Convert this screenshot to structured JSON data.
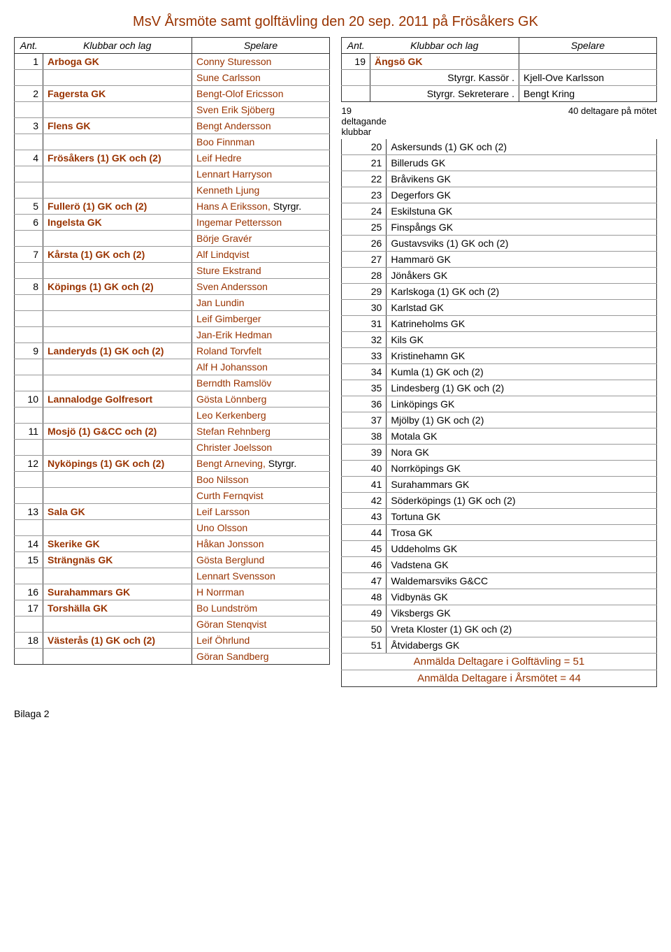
{
  "title": "MsV  Årsmöte samt golftävling den 20 sep. 2011 på Frösåkers GK",
  "colors": {
    "accent": "#993300",
    "grid": "#999999",
    "border": "#333333",
    "background": "#ffffff"
  },
  "left": {
    "headers": {
      "ant": "Ant.",
      "klubbar": "Klubbar och lag",
      "spelare": "Spelare"
    },
    "rows": [
      {
        "ant": "1",
        "klub": "Arboga GK",
        "player": "Conny Sturesson"
      },
      {
        "ant": "",
        "klub": "",
        "player": "Sune Carlsson"
      },
      {
        "ant": "2",
        "klub": "Fagersta GK",
        "player": "Bengt-Olof Ericsson"
      },
      {
        "ant": "",
        "klub": "",
        "player": "Sven Erik Sjöberg"
      },
      {
        "ant": "3",
        "klub": "Flens GK",
        "player": "Bengt Andersson"
      },
      {
        "ant": "",
        "klub": "",
        "player": "Boo Finnman"
      },
      {
        "ant": "4",
        "klub": "Frösåkers (1) GK och (2)",
        "player": "Leif Hedre"
      },
      {
        "ant": "",
        "klub": "",
        "player": "Lennart Harryson"
      },
      {
        "ant": "",
        "klub": "",
        "player": "Kenneth Ljung"
      },
      {
        "ant": "5",
        "klub": "Fullerö (1) GK och (2)",
        "player": "Hans A Eriksson,",
        "extra": " Styrgr."
      },
      {
        "ant": "6",
        "klub": "Ingelsta GK",
        "player": "Ingemar Pettersson"
      },
      {
        "ant": "",
        "klub": "",
        "player": "Börje Gravér"
      },
      {
        "ant": "7",
        "klub": "Kårsta (1) GK och (2)",
        "player": "Alf Lindqvist"
      },
      {
        "ant": "",
        "klub": "",
        "player": "Sture Ekstrand"
      },
      {
        "ant": "8",
        "klub": "Köpings (1) GK och (2)",
        "player": "Sven Andersson"
      },
      {
        "ant": "",
        "klub": "",
        "player": "Jan Lundin"
      },
      {
        "ant": "",
        "klub": "",
        "player": "Leif Gimberger"
      },
      {
        "ant": "",
        "klub": "",
        "player": "Jan-Erik Hedman"
      },
      {
        "ant": "9",
        "klub": "Landeryds (1) GK och (2)",
        "player": "Roland Torvfelt"
      },
      {
        "ant": "",
        "klub": "",
        "player": "Alf H Johansson"
      },
      {
        "ant": "",
        "klub": "",
        "player": "Berndth Ramslöv"
      },
      {
        "ant": "10",
        "klub": "Lannalodge Golfresort",
        "player": "Gösta Lönnberg"
      },
      {
        "ant": "",
        "klub": "",
        "player": "Leo Kerkenberg"
      },
      {
        "ant": "11",
        "klub": "Mosjö (1) G&CC och (2)",
        "player": "Stefan Rehnberg"
      },
      {
        "ant": "",
        "klub": "",
        "player": "Christer Joelsson"
      },
      {
        "ant": "12",
        "klub": "Nyköpings (1) GK och (2)",
        "player": "Bengt Arneving,",
        "extra": " Styrgr."
      },
      {
        "ant": "",
        "klub": "",
        "player": "Boo Nilsson"
      },
      {
        "ant": "",
        "klub": "",
        "player": "Curth Fernqvist"
      },
      {
        "ant": "13",
        "klub": "Sala GK",
        "player": "Leif Larsson"
      },
      {
        "ant": "",
        "klub": "",
        "player": "Uno Olsson"
      },
      {
        "ant": "14",
        "klub": "Skerike GK",
        "player": "Håkan Jonsson"
      },
      {
        "ant": "15",
        "klub": "Strängnäs GK",
        "player": "Gösta Berglund"
      },
      {
        "ant": "",
        "klub": "",
        "player": "Lennart Svensson"
      },
      {
        "ant": "16",
        "klub": "Surahammars GK",
        "player": "H Norrman"
      },
      {
        "ant": "17",
        "klub": "Torshälla GK",
        "player": "Bo Lundström"
      },
      {
        "ant": "",
        "klub": "",
        "player": "Göran Stenqvist"
      },
      {
        "ant": "18",
        "klub": "Västerås (1) GK och (2)",
        "player": "Leif Öhrlund"
      },
      {
        "ant": "",
        "klub": "",
        "player": "Göran Sandberg"
      }
    ]
  },
  "right": {
    "headers": {
      "ant": "Ant.",
      "klubbar": "Klubbar och lag",
      "spelare": "Spelare"
    },
    "top": [
      {
        "ant": "19",
        "klub": "Ängsö GK",
        "player": ""
      },
      {
        "ant": "",
        "klub_plain": "Styrgr. Kassör .",
        "player_plain": "Kjell-Ove Karlsson"
      },
      {
        "ant": "",
        "klub_plain": "Styrgr. Sekreterare .",
        "player_plain": "Bengt Kring"
      }
    ],
    "deltagande": {
      "left": "19 deltagande klubbar",
      "right": "40 deltagare på mötet"
    },
    "list": [
      {
        "n": "20",
        "name": "Askersunds (1) GK och (2)"
      },
      {
        "n": "21",
        "name": "Billeruds GK"
      },
      {
        "n": "22",
        "name": "Bråvikens GK"
      },
      {
        "n": "23",
        "name": "Degerfors GK"
      },
      {
        "n": "24",
        "name": "Eskilstuna GK"
      },
      {
        "n": "25",
        "name": "Finspångs GK"
      },
      {
        "n": "26",
        "name": "Gustavsviks (1) GK och (2)"
      },
      {
        "n": "27",
        "name": "Hammarö GK"
      },
      {
        "n": "28",
        "name": "Jönåkers GK"
      },
      {
        "n": "29",
        "name": "Karlskoga (1) GK och (2)"
      },
      {
        "n": "30",
        "name": "Karlstad GK"
      },
      {
        "n": "31",
        "name": "Katrineholms GK"
      },
      {
        "n": "32",
        "name": "Kils GK"
      },
      {
        "n": "33",
        "name": "Kristinehamn GK"
      },
      {
        "n": "34",
        "name": "Kumla (1) GK och (2)"
      },
      {
        "n": "35",
        "name": "Lindesberg (1) GK och (2)"
      },
      {
        "n": "36",
        "name": "Linköpings GK"
      },
      {
        "n": "37",
        "name": "Mjölby (1) GK och (2)"
      },
      {
        "n": "38",
        "name": "Motala GK"
      },
      {
        "n": "39",
        "name": "Nora GK"
      },
      {
        "n": "40",
        "name": "Norrköpings GK"
      },
      {
        "n": "41",
        "name": "Surahammars GK"
      },
      {
        "n": "42",
        "name": "Söderköpings (1) GK och (2)"
      },
      {
        "n": "43",
        "name": "Tortuna GK"
      },
      {
        "n": "44",
        "name": "Trosa GK"
      },
      {
        "n": "45",
        "name": "Uddeholms GK"
      },
      {
        "n": "46",
        "name": "Vadstena GK"
      },
      {
        "n": "47",
        "name": "Waldemarsviks G&CC"
      },
      {
        "n": "48",
        "name": "Vidbynäs GK"
      },
      {
        "n": "49",
        "name": "Viksbergs GK"
      },
      {
        "n": "50",
        "name": "Vreta Kloster (1) GK och (2)"
      },
      {
        "n": "51",
        "name": "Åtvidabergs GK"
      }
    ],
    "summary1": "Anmälda Deltagare i Golftävling = 51",
    "summary2": "Anmälda Deltagare i Årsmötet = 44"
  },
  "bilaga": "Bilaga 2"
}
